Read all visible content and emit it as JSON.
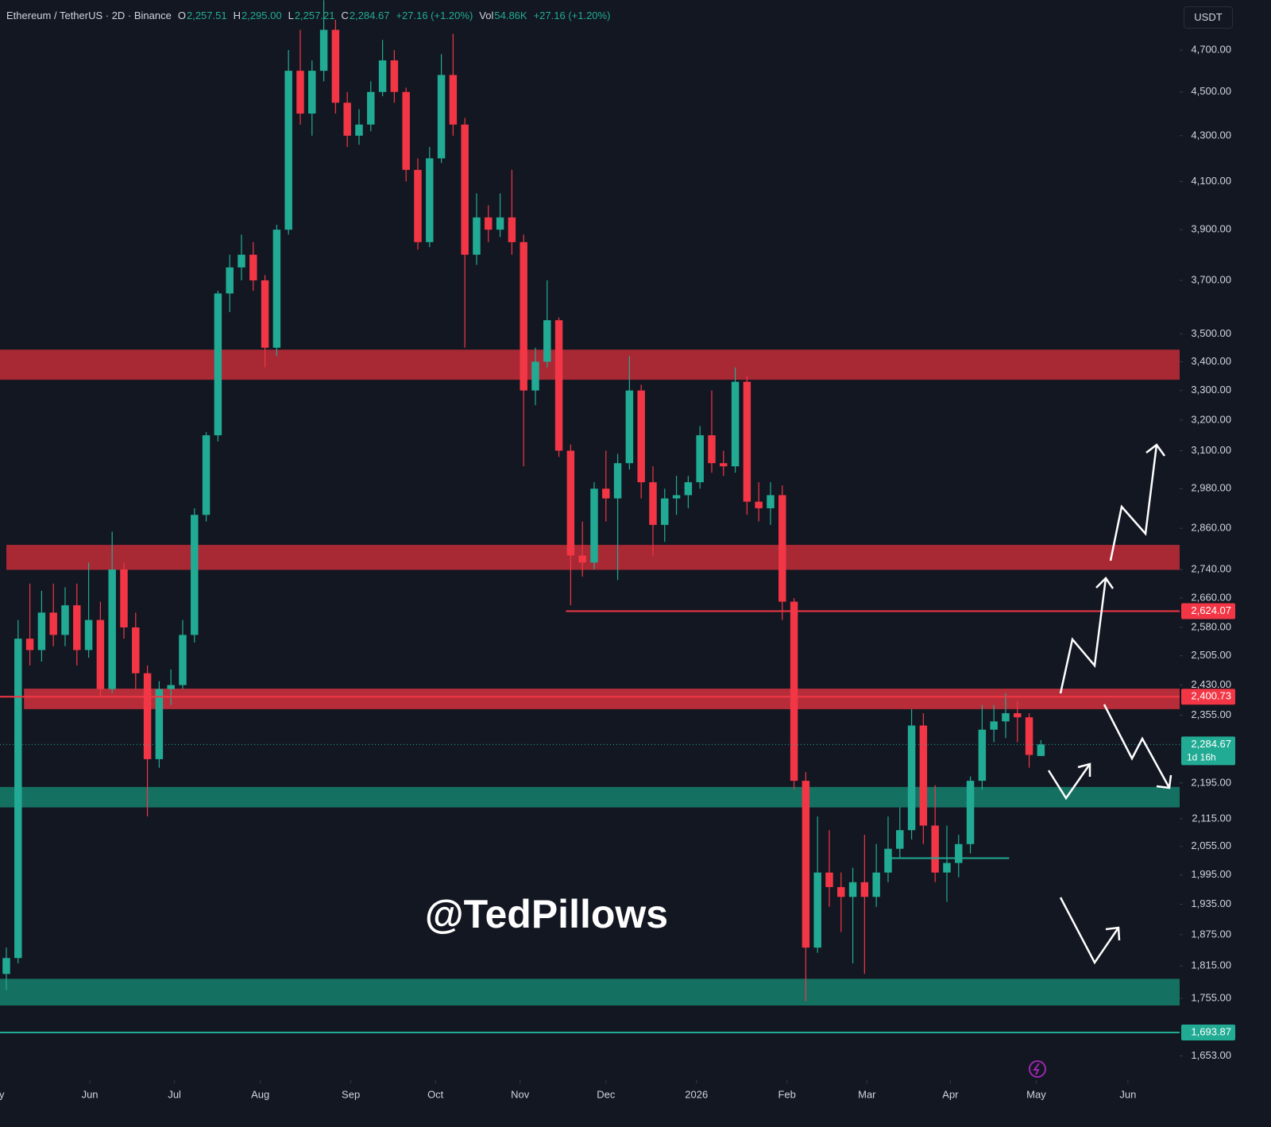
{
  "chart_data": {
    "type": "candlestick",
    "title": "Ethereum / TetherUS · 2D · Binance",
    "legend_values": [
      {
        "label": "O",
        "value": "2,257.51"
      },
      {
        "label": "H",
        "value": "2,295.00"
      },
      {
        "label": "L",
        "value": "2,257.21"
      },
      {
        "label": "C",
        "value": "2,284.67"
      },
      {
        "label": "",
        "value": "+27.16 (+1.20%)"
      },
      {
        "label": "Vol",
        "value": "54.86K"
      },
      {
        "label": "",
        "value": "+27.16 (+1.20%)"
      }
    ],
    "currency": "USDT",
    "watermark": "@TedPillows",
    "up_color": "#22ab94",
    "down_color": "#f23645",
    "log_scale": true,
    "ylim": [
      1612,
      4951
    ],
    "xlim": [
      -0.54,
      99.8
    ],
    "xticks": [
      {
        "value": -1,
        "label": "May"
      },
      {
        "value": 7.1,
        "label": "Jun"
      },
      {
        "value": 14.3,
        "label": "Jul"
      },
      {
        "value": 21.6,
        "label": "Aug"
      },
      {
        "value": 29.3,
        "label": "Sep"
      },
      {
        "value": 36.5,
        "label": "Oct"
      },
      {
        "value": 43.7,
        "label": "Nov"
      },
      {
        "value": 51.0,
        "label": "Dec"
      },
      {
        "value": 58.7,
        "label": "2026"
      },
      {
        "value": 66.4,
        "label": "Feb"
      },
      {
        "value": 73.2,
        "label": "Mar"
      },
      {
        "value": 80.3,
        "label": "Apr"
      },
      {
        "value": 87.6,
        "label": "May"
      },
      {
        "value": 95.4,
        "label": "Jun"
      }
    ],
    "yticks": [
      {
        "value": 4700,
        "label": "4,700.00"
      },
      {
        "value": 4500,
        "label": "4,500.00"
      },
      {
        "value": 4300,
        "label": "4,300.00"
      },
      {
        "value": 4100,
        "label": "4,100.00"
      },
      {
        "value": 3900,
        "label": "3,900.00"
      },
      {
        "value": 3700,
        "label": "3,700.00"
      },
      {
        "value": 3500,
        "label": "3,500.00"
      },
      {
        "value": 3400,
        "label": "3,400.00"
      },
      {
        "value": 3300,
        "label": "3,300.00"
      },
      {
        "value": 3200,
        "label": "3,200.00"
      },
      {
        "value": 3100,
        "label": "3,100.00"
      },
      {
        "value": 2980,
        "label": "2,980.00"
      },
      {
        "value": 2860,
        "label": "2,860.00"
      },
      {
        "value": 2740,
        "label": "2,740.00"
      },
      {
        "value": 2660,
        "label": "2,660.00"
      },
      {
        "value": 2580,
        "label": "2,580.00"
      },
      {
        "value": 2505,
        "label": "2,505.00"
      },
      {
        "value": 2430,
        "label": "2,430.00"
      },
      {
        "value": 2355,
        "label": "2,355.00"
      },
      {
        "value": 2195,
        "label": "2,195.00"
      },
      {
        "value": 2115,
        "label": "2,115.00"
      },
      {
        "value": 2055,
        "label": "2,055.00"
      },
      {
        "value": 1995,
        "label": "1,995.00"
      },
      {
        "value": 1935,
        "label": "1,935.00"
      },
      {
        "value": 1875,
        "label": "1,875.00"
      },
      {
        "value": 1815,
        "label": "1,815.00"
      },
      {
        "value": 1755,
        "label": "1,755.00"
      },
      {
        "value": 1653,
        "label": "1,653.00"
      }
    ],
    "zones": [
      {
        "low": 3337,
        "high": 3443,
        "start": -0.54,
        "color": "#b52a36"
      },
      {
        "low": 2739,
        "high": 2811,
        "start": 0,
        "color": "#b52a36"
      },
      {
        "low": 2370,
        "high": 2421,
        "start": 1.5,
        "color": "#c4303c"
      },
      {
        "low": 2140,
        "high": 2186,
        "start": -0.54,
        "color": "#157a68"
      },
      {
        "low": 1742,
        "high": 1791,
        "start": -0.54,
        "color": "#157a68"
      }
    ],
    "price_lines": [
      {
        "value": 2624.07,
        "label": "2,624.07",
        "start": 47.6,
        "color": "#f23645"
      },
      {
        "value": 2400.73,
        "label": "2,400.73",
        "start": -0.54,
        "color": "#f23645"
      },
      {
        "value": 2284.67,
        "label": "2,284.67",
        "countdown": "1d 16h",
        "start": -0.54,
        "color": "#22ab94",
        "dashed": true
      },
      {
        "value": 1693.87,
        "label": "1,693.87",
        "start": -0.54,
        "color": "#22ab94"
      }
    ],
    "levels": [
      {
        "value": 2030,
        "start": 75.1,
        "end": 85.3,
        "color": "#22ab94"
      }
    ],
    "ohlc": [
      [
        1800,
        1850,
        1770,
        1830
      ],
      [
        1830,
        2600,
        1820,
        2550
      ],
      [
        2550,
        2700,
        2480,
        2520
      ],
      [
        2520,
        2680,
        2490,
        2620
      ],
      [
        2620,
        2700,
        2530,
        2560
      ],
      [
        2560,
        2690,
        2530,
        2640
      ],
      [
        2640,
        2700,
        2480,
        2520
      ],
      [
        2520,
        2760,
        2500,
        2600
      ],
      [
        2600,
        2650,
        2400,
        2420
      ],
      [
        2420,
        2850,
        2410,
        2740
      ],
      [
        2740,
        2760,
        2550,
        2580
      ],
      [
        2580,
        2620,
        2420,
        2460
      ],
      [
        2460,
        2480,
        2120,
        2250
      ],
      [
        2250,
        2440,
        2230,
        2420
      ],
      [
        2420,
        2470,
        2380,
        2430
      ],
      [
        2430,
        2600,
        2420,
        2560
      ],
      [
        2560,
        2920,
        2540,
        2900
      ],
      [
        2900,
        3160,
        2880,
        3150
      ],
      [
        3150,
        3660,
        3130,
        3650
      ],
      [
        3650,
        3800,
        3580,
        3750
      ],
      [
        3750,
        3880,
        3700,
        3800
      ],
      [
        3800,
        3850,
        3660,
        3700
      ],
      [
        3700,
        3720,
        3380,
        3450
      ],
      [
        3450,
        3920,
        3420,
        3900
      ],
      [
        3900,
        4700,
        3880,
        4600
      ],
      [
        4600,
        4800,
        4350,
        4400
      ],
      [
        4400,
        4650,
        4300,
        4600
      ],
      [
        4600,
        4950,
        4550,
        4800
      ],
      [
        4800,
        4850,
        4400,
        4450
      ],
      [
        4450,
        4500,
        4250,
        4300
      ],
      [
        4300,
        4420,
        4260,
        4350
      ],
      [
        4350,
        4550,
        4320,
        4500
      ],
      [
        4500,
        4750,
        4480,
        4650
      ],
      [
        4650,
        4700,
        4450,
        4500
      ],
      [
        4500,
        4520,
        4100,
        4150
      ],
      [
        4150,
        4200,
        3820,
        3850
      ],
      [
        3850,
        4250,
        3830,
        4200
      ],
      [
        4200,
        4680,
        4180,
        4580
      ],
      [
        4580,
        4780,
        4300,
        4350
      ],
      [
        4350,
        4380,
        3450,
        3800
      ],
      [
        3800,
        4050,
        3760,
        3950
      ],
      [
        3950,
        4000,
        3850,
        3900
      ],
      [
        3900,
        4050,
        3870,
        3950
      ],
      [
        3950,
        4150,
        3800,
        3850
      ],
      [
        3850,
        3880,
        3050,
        3300
      ],
      [
        3300,
        3450,
        3250,
        3400
      ],
      [
        3400,
        3700,
        3380,
        3550
      ],
      [
        3550,
        3560,
        3080,
        3100
      ],
      [
        3100,
        3120,
        2640,
        2780
      ],
      [
        2780,
        2880,
        2720,
        2760
      ],
      [
        2760,
        3000,
        2740,
        2980
      ],
      [
        2980,
        3100,
        2880,
        2950
      ],
      [
        2950,
        3090,
        2710,
        3060
      ],
      [
        3060,
        3420,
        3040,
        3300
      ],
      [
        3300,
        3320,
        2950,
        3000
      ],
      [
        3000,
        3050,
        2780,
        2870
      ],
      [
        2870,
        2980,
        2820,
        2950
      ],
      [
        2950,
        3020,
        2900,
        2960
      ],
      [
        2960,
        3020,
        2920,
        3000
      ],
      [
        3000,
        3180,
        2980,
        3150
      ],
      [
        3150,
        3300,
        3030,
        3060
      ],
      [
        3060,
        3100,
        3020,
        3050
      ],
      [
        3050,
        3380,
        3030,
        3330
      ],
      [
        3330,
        3350,
        2900,
        2940
      ],
      [
        2940,
        3000,
        2880,
        2920
      ],
      [
        2920,
        3000,
        2870,
        2960
      ],
      [
        2960,
        2990,
        2600,
        2650
      ],
      [
        2650,
        2660,
        2180,
        2200
      ],
      [
        2200,
        2220,
        1750,
        1850
      ],
      [
        1850,
        2120,
        1840,
        2000
      ],
      [
        2000,
        2090,
        1930,
        1970
      ],
      [
        1970,
        2000,
        1880,
        1950
      ],
      [
        1950,
        2010,
        1820,
        1980
      ],
      [
        1980,
        2080,
        1800,
        1950
      ],
      [
        1950,
        2060,
        1930,
        2000
      ],
      [
        2000,
        2120,
        1980,
        2050
      ],
      [
        2050,
        2140,
        2030,
        2090
      ],
      [
        2090,
        2370,
        2070,
        2330
      ],
      [
        2330,
        2360,
        2060,
        2100
      ],
      [
        2100,
        2190,
        1980,
        2000
      ],
      [
        2000,
        2100,
        1940,
        2020
      ],
      [
        2020,
        2080,
        1990,
        2060
      ],
      [
        2060,
        2210,
        2040,
        2200
      ],
      [
        2200,
        2380,
        2180,
        2320
      ],
      [
        2320,
        2380,
        2290,
        2340
      ],
      [
        2340,
        2410,
        2300,
        2360
      ],
      [
        2360,
        2390,
        2290,
        2350
      ],
      [
        2350,
        2360,
        2230,
        2260
      ],
      [
        2257.51,
        2295,
        2257.21,
        2284.67
      ]
    ]
  }
}
